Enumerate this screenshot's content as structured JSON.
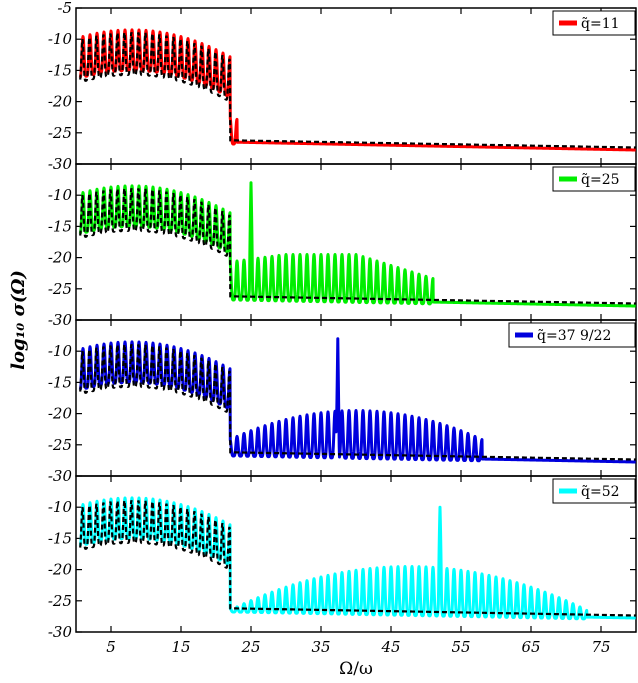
{
  "chart_data": {
    "type": "line",
    "layout": "4 vertically stacked panels sharing x-axis",
    "xlabel": "Ω/ω",
    "ylabel": "log₁₀ σ(Ω)",
    "xlim": [
      0,
      80
    ],
    "ylim": [
      -30,
      -5
    ],
    "x_ticks": [
      5,
      15,
      25,
      35,
      45,
      55,
      65,
      75
    ],
    "x_tick_labels": [
      "5",
      "15",
      "25",
      "35",
      "45",
      "55",
      "65",
      "75"
    ],
    "y_ticks": [
      -5,
      -10,
      -15,
      -20,
      -25,
      -30
    ],
    "y_tick_labels": [
      "-5",
      "-10",
      "-15",
      "-20",
      "-25",
      "-30"
    ],
    "legend_position": "top-right",
    "reference_series": {
      "color": "#000000",
      "style": "dashed",
      "description": "reference curve, same in every panel"
    },
    "panels": [
      {
        "legend": "q̃=11",
        "color": "#ff0000",
        "cutoff": 23,
        "peak": null,
        "x_ticks_labels_y": [
          "-5",
          "-10",
          "-15",
          "-20",
          "-25",
          "-30"
        ]
      },
      {
        "legend": "q̃=25",
        "color": "#00ee00",
        "cutoff": 51,
        "peak": {
          "x": 25,
          "y": -8
        }
      },
      {
        "legend": "q̃=37 9/22",
        "color": "#0000dd",
        "cutoff": 58,
        "peak": {
          "x": 37.4,
          "y": -8
        }
      },
      {
        "legend": "q̃=52",
        "color": "#00ffff",
        "cutoff": 73,
        "peak": {
          "x": 52,
          "y": -10
        }
      }
    ]
  }
}
